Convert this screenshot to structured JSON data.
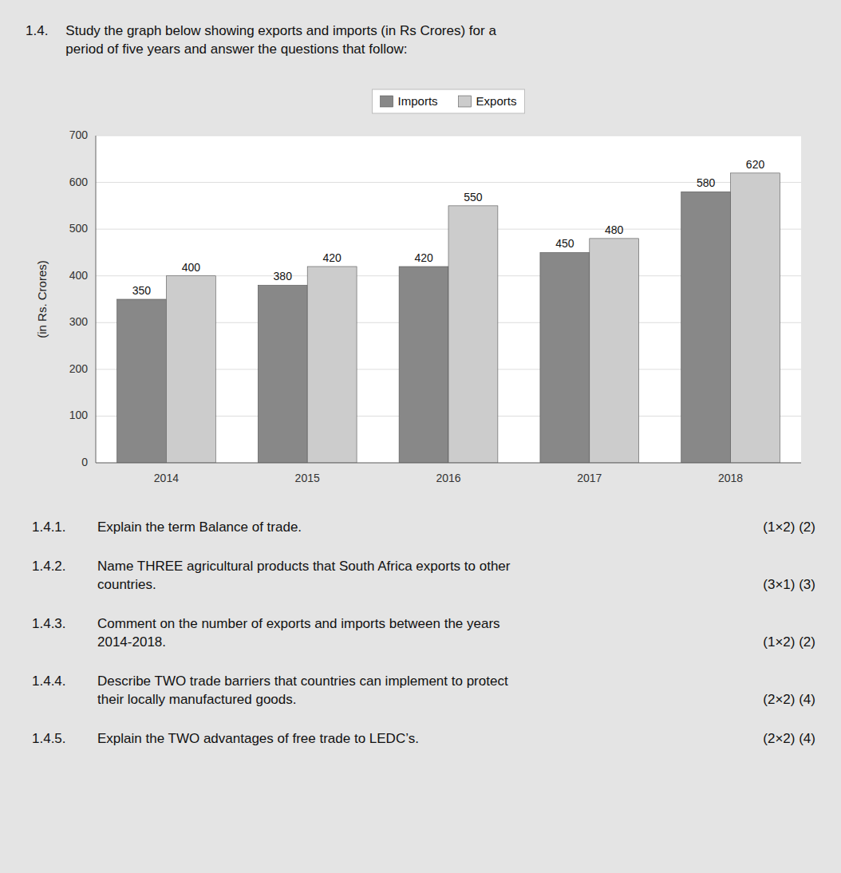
{
  "chart_data": {
    "type": "bar",
    "title": "Study the graph below showing exports and imports (in Rs Crores) for a\nperiod of five years and answer the questions that follow:",
    "ylabel": "(in Rs. Crores)",
    "categories": [
      "2014",
      "2015",
      "2016",
      "2017",
      "2018"
    ],
    "series": [
      {
        "name": "Imports",
        "color": "#888888",
        "values": [
          350,
          380,
          420,
          450,
          580
        ]
      },
      {
        "name": "Exports",
        "color": "#cccccc",
        "values": [
          400,
          420,
          550,
          480,
          620
        ]
      }
    ],
    "ylim": [
      0,
      700
    ],
    "yticks": [
      0,
      100,
      200,
      300,
      400,
      500,
      600,
      700
    ],
    "grid": true,
    "legend": "top",
    "data_labels": true,
    "annotations": [
      "1.4.",
      "1.4.1.",
      "Explain the term Balance of trade.",
      "(1×2) (2)",
      "1.4.2.",
      "Name THREE agricultural products that South Africa exports to other\ncountries.",
      "(3×1) (3)",
      "1.4.3.",
      "Comment on the number of exports and imports between the years\n2014-2018.",
      "(1×2) (2)",
      "1.4.4.",
      "Describe TWO trade barriers that countries can implement to protect\ntheir locally manufactured goods.",
      "(2×2) (4)",
      "1.4.5.",
      "Explain the TWO advantages of free trade to LEDC’s.",
      "(2×2) (4)"
    ]
  }
}
